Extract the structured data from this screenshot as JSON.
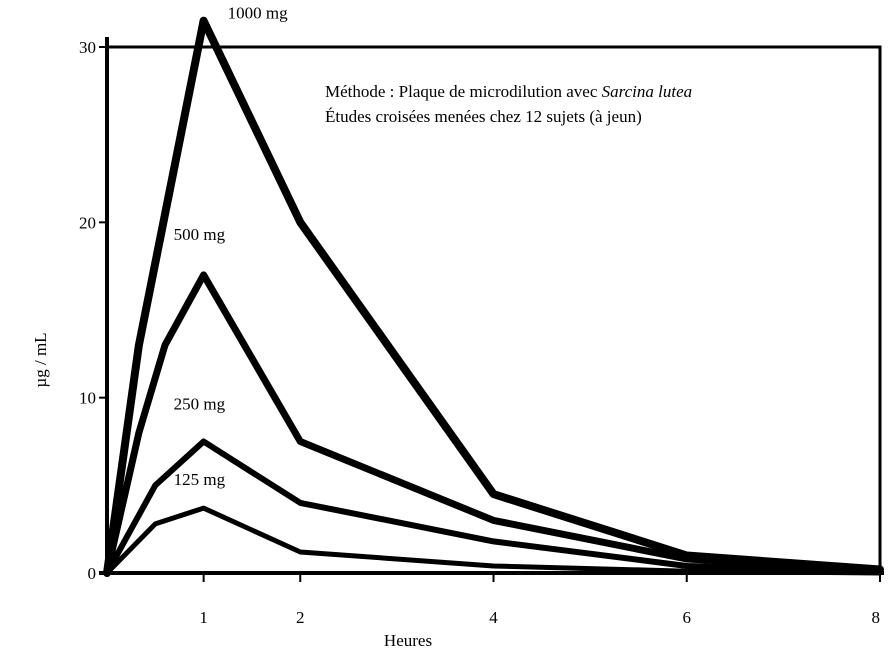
{
  "chart_data": {
    "type": "line",
    "title": "",
    "xlabel": "Heures",
    "ylabel": "µg / mL",
    "xlim": [
      0,
      8
    ],
    "ylim": [
      0,
      30
    ],
    "x_ticks": [
      1,
      2,
      4,
      6,
      8
    ],
    "y_ticks": [
      0,
      10,
      20,
      30
    ],
    "grid": false,
    "legend": "inline labels",
    "annotation": {
      "line1_prefix": "Méthode : Plaque de microdilution avec ",
      "line1_italic": "Sarcina lutea",
      "line2": "Études croisées menées chez 12 sujets (à jeun)"
    },
    "series": [
      {
        "name": "1000 mg",
        "points": [
          [
            0,
            0
          ],
          [
            0.33,
            13
          ],
          [
            1,
            31.5
          ],
          [
            2,
            20
          ],
          [
            4,
            4.5
          ],
          [
            6,
            1
          ],
          [
            8,
            0.2
          ]
        ]
      },
      {
        "name": "500 mg",
        "points": [
          [
            0,
            0
          ],
          [
            0.33,
            8
          ],
          [
            0.6,
            13
          ],
          [
            1,
            17
          ],
          [
            2,
            7.5
          ],
          [
            4,
            3
          ],
          [
            6,
            0.8
          ],
          [
            8,
            0.2
          ]
        ]
      },
      {
        "name": "250 mg",
        "points": [
          [
            0,
            0
          ],
          [
            0.5,
            5
          ],
          [
            1,
            7.5
          ],
          [
            2,
            4
          ],
          [
            4,
            1.8
          ],
          [
            6,
            0.4
          ],
          [
            8,
            0.1
          ]
        ]
      },
      {
        "name": "125 mg",
        "points": [
          [
            0,
            0
          ],
          [
            0.5,
            2.8
          ],
          [
            1,
            3.7
          ],
          [
            2,
            1.2
          ],
          [
            4,
            0.4
          ],
          [
            6,
            0.1
          ],
          [
            8,
            0
          ]
        ]
      }
    ]
  }
}
